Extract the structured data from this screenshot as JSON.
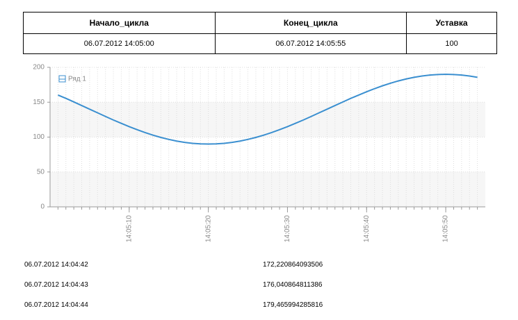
{
  "table": {
    "header": [
      "Начало_цикла",
      "Конец_цикла",
      "Уставка"
    ],
    "rows": [
      [
        "06.07.2012 14:05:00",
        "06.07.2012 14:05:55",
        "100"
      ]
    ]
  },
  "chart_data": {
    "type": "line",
    "color": "#3a8fd0",
    "x": [
      "14:05:01",
      "14:05:02",
      "14:05:03",
      "14:05:04",
      "14:05:05",
      "14:05:06",
      "14:05:07",
      "14:05:08",
      "14:05:09",
      "14:05:10",
      "14:05:11",
      "14:05:12",
      "14:05:13",
      "14:05:14",
      "14:05:15",
      "14:05:16",
      "14:05:17",
      "14:05:18",
      "14:05:19",
      "14:05:20",
      "14:05:21",
      "14:05:22",
      "14:05:23",
      "14:05:24",
      "14:05:25",
      "14:05:26",
      "14:05:27",
      "14:05:28",
      "14:05:29",
      "14:05:30",
      "14:05:31",
      "14:05:32",
      "14:05:33",
      "14:05:34",
      "14:05:35",
      "14:05:36",
      "14:05:37",
      "14:05:38",
      "14:05:39",
      "14:05:40",
      "14:05:41",
      "14:05:42",
      "14:05:43",
      "14:05:44",
      "14:05:45",
      "14:05:46",
      "14:05:47",
      "14:05:48",
      "14:05:49",
      "14:05:50",
      "14:05:51",
      "14:05:52",
      "14:05:53",
      "14:05:54"
    ],
    "series": [
      {
        "name": "Ряд 1",
        "color": "#3a8fd0",
        "values": [
          160.3,
          155.5,
          150.4,
          145.2,
          140.0,
          134.8,
          129.6,
          124.5,
          119.7,
          115.0,
          110.6,
          106.5,
          102.8,
          99.5,
          96.7,
          94.3,
          92.4,
          91.1,
          90.3,
          90.0,
          90.3,
          91.1,
          92.4,
          94.3,
          96.7,
          99.5,
          102.8,
          106.5,
          110.6,
          115.0,
          119.7,
          124.5,
          129.6,
          134.8,
          140.0,
          145.2,
          150.4,
          155.5,
          160.3,
          165.0,
          169.4,
          173.5,
          177.2,
          180.5,
          183.3,
          185.7,
          187.6,
          188.9,
          189.7,
          190.0,
          189.7,
          188.9,
          187.6,
          185.7
        ]
      }
    ],
    "xlim": [
      "14:05:00",
      "14:05:55"
    ],
    "xticks": [
      "14:05:10",
      "14:05:20",
      "14:05:30",
      "14:05:40",
      "14:05:50"
    ],
    "ylim": [
      0,
      200
    ],
    "yticks": [
      0,
      50,
      100,
      150,
      200
    ],
    "grid": true,
    "legend": "top-left"
  },
  "records": [
    [
      "06.07.2012 14:04:42",
      "172,220864093506"
    ],
    [
      "06.07.2012 14:04:43",
      "176,040864811386"
    ],
    [
      "06.07.2012 14:04:44",
      "179,465994285816"
    ]
  ]
}
